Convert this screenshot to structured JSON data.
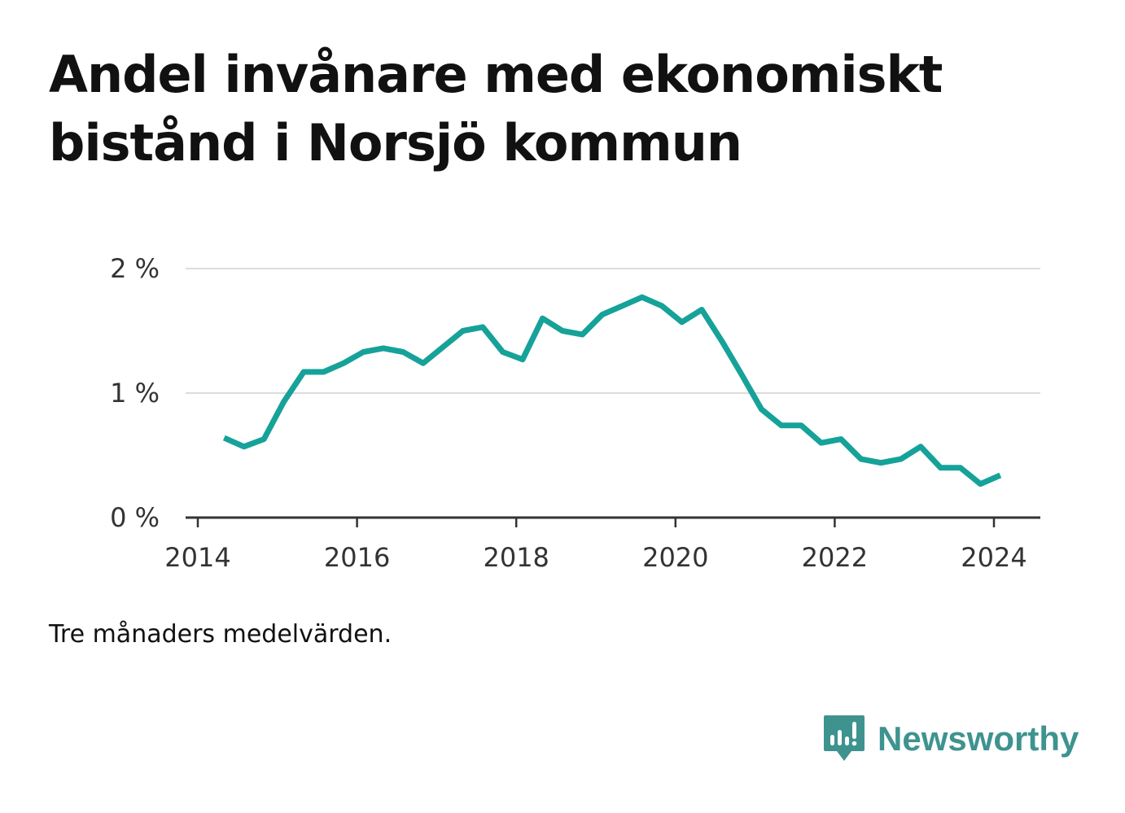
{
  "title": "Andel invånare med ekonomiskt bistånd i Norsjö kommun",
  "note": "Tre månaders medelvärden.",
  "brand": {
    "name": "Newsworthy",
    "icon": "newsworthy-logo-icon",
    "color": "#3e938f"
  },
  "chart_data": {
    "type": "line",
    "title": "Andel invånare med ekonomiskt bistånd i Norsjö kommun",
    "xlabel": "",
    "ylabel": "",
    "xlim": [
      2014,
      2024.6
    ],
    "ylim": [
      0,
      2
    ],
    "x_ticks": [
      {
        "value": 2014,
        "label": "2014"
      },
      {
        "value": 2016,
        "label": "2016"
      },
      {
        "value": 2018,
        "label": "2018"
      },
      {
        "value": 2020,
        "label": "2020"
      },
      {
        "value": 2022,
        "label": "2022"
      },
      {
        "value": 2024,
        "label": "2024"
      }
    ],
    "y_ticks": [
      {
        "value": 0,
        "label": "0 %"
      },
      {
        "value": 1,
        "label": "1 %"
      },
      {
        "value": 2,
        "label": "2 %"
      }
    ],
    "grid": true,
    "legend": "none",
    "line_color": "#16a299",
    "series": [
      {
        "x": [
          2014.33,
          2014.58,
          2014.83,
          2015.08,
          2015.33,
          2015.58,
          2015.83,
          2016.08,
          2016.33,
          2016.58,
          2016.83,
          2017.08,
          2017.33,
          2017.58,
          2017.83,
          2018.08,
          2018.33,
          2018.58,
          2018.83,
          2019.08,
          2019.33,
          2019.58,
          2019.83,
          2020.08,
          2020.33,
          2020.58,
          2020.83,
          2021.08,
          2021.33,
          2021.58,
          2021.83,
          2022.08,
          2022.33,
          2022.58,
          2022.83,
          2023.08,
          2023.33,
          2023.58,
          2023.83,
          2024.08
        ],
        "values": [
          0.64,
          0.57,
          0.63,
          0.93,
          1.17,
          1.17,
          1.24,
          1.33,
          1.36,
          1.33,
          1.24,
          1.37,
          1.5,
          1.53,
          1.33,
          1.27,
          1.6,
          1.5,
          1.47,
          1.63,
          1.7,
          1.77,
          1.7,
          1.57,
          1.67,
          1.42,
          1.15,
          0.87,
          0.74,
          0.74,
          0.6,
          0.63,
          0.47,
          0.44,
          0.47,
          0.57,
          0.4,
          0.4,
          0.27,
          0.34
        ]
      }
    ]
  }
}
